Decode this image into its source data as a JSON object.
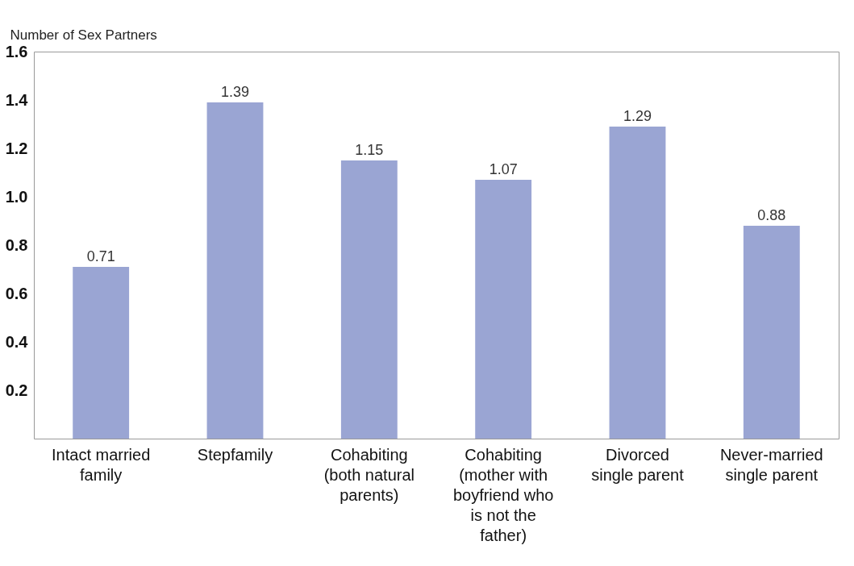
{
  "chart_data": {
    "type": "bar",
    "ylabel": "Number of Sex Partners",
    "categories": [
      "Intact married family",
      "Stepfamily",
      "Cohabiting (both natural parents)",
      "Cohabiting (mother with boyfriend who is not the father)",
      "Divorced single parent",
      "Never-married single parent"
    ],
    "values": [
      0.71,
      1.39,
      1.15,
      1.07,
      1.29,
      0.88
    ],
    "color": "#9aa5d3",
    "data_labels": true,
    "ylim": [
      0,
      1.6
    ],
    "yticks": [
      0.2,
      0.4,
      0.6,
      0.8,
      {
        "value": 1,
        "label": "1.0"
      },
      1.2,
      1.4,
      1.6
    ],
    "grid": false
  }
}
